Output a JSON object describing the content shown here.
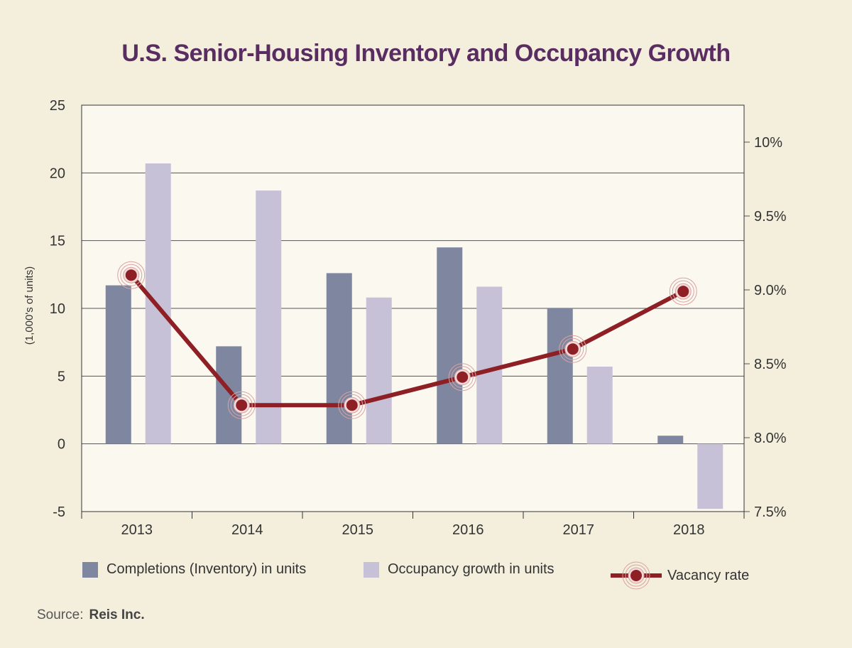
{
  "chart_data": {
    "type": "bar",
    "title": "U.S. Senior-Housing Inventory and Occupancy Growth",
    "categories": [
      "2013",
      "2014",
      "2015",
      "2016",
      "2017",
      "2018"
    ],
    "ylabel": "(1,000's of units)",
    "ylim": [
      -5,
      25
    ],
    "y_ticks": [
      "25",
      "20",
      "15",
      "10",
      "5",
      "0",
      "-5"
    ],
    "y2lim": [
      7.5,
      10.25
    ],
    "y2_ticks": [
      "10%",
      "9.5%",
      "9.0%",
      "8.5%",
      "8.0%",
      "7.5%"
    ],
    "grid": true,
    "legend_position": "bottom",
    "series": [
      {
        "name": "Completions (Inventory) in units",
        "type": "bar",
        "axis": "left",
        "color": "#7f86a0",
        "values": [
          11.7,
          7.2,
          12.6,
          14.5,
          10.0,
          0.6
        ]
      },
      {
        "name": "Occupancy growth in units",
        "type": "bar",
        "axis": "left",
        "color": "#c6c1d6",
        "values": [
          20.7,
          18.7,
          10.8,
          11.6,
          5.7,
          -4.8
        ]
      },
      {
        "name": "Vacancy rate",
        "type": "line",
        "axis": "right",
        "color": "#8e1f24",
        "values": [
          9.1,
          8.22,
          8.22,
          8.41,
          8.6,
          8.99
        ]
      }
    ]
  },
  "source": {
    "label": "Source:",
    "value": "Reis Inc."
  }
}
